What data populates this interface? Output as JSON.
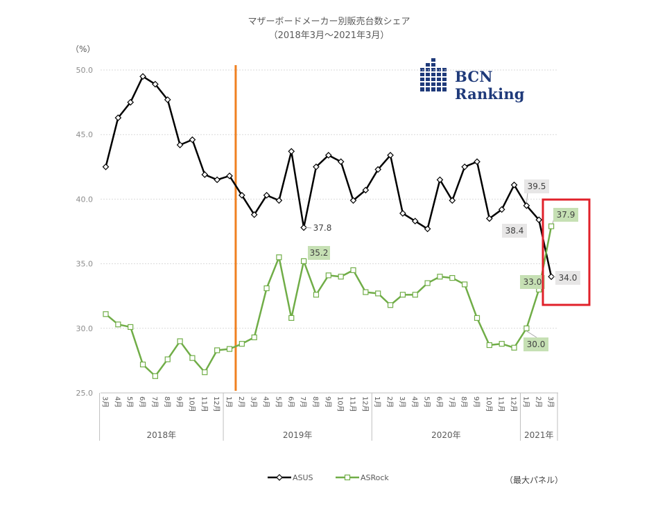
{
  "chart_data": {
    "type": "line",
    "title": "マザーボードメーカー別販売台数シェア",
    "subtitle": "（2018年3月～2021年3月）",
    "ylabel": "（%）",
    "ylim": [
      25,
      50
    ],
    "yticks": [
      "50.0",
      "45.0",
      "40.0",
      "35.0",
      "30.0",
      "25.0"
    ],
    "grid": true,
    "legend_position": "bottom",
    "categories": [
      "3月",
      "4月",
      "5月",
      "6月",
      "7月",
      "8月",
      "9月",
      "10月",
      "11月",
      "12月",
      "1月",
      "2月",
      "3月",
      "4月",
      "5月",
      "6月",
      "7月",
      "8月",
      "9月",
      "10月",
      "11月",
      "12月",
      "1月",
      "2月",
      "3月",
      "4月",
      "5月",
      "6月",
      "7月",
      "8月",
      "9月",
      "10月",
      "11月",
      "12月",
      "1月",
      "2月",
      "3月"
    ],
    "years": [
      {
        "label": "2018年",
        "from": 0,
        "to": 9
      },
      {
        "label": "2019年",
        "from": 10,
        "to": 21
      },
      {
        "label": "2020年",
        "from": 22,
        "to": 33
      },
      {
        "label": "2021年",
        "from": 34,
        "to": 36
      }
    ],
    "series": [
      {
        "name": "ASUS",
        "color": "#000000",
        "marker": "diamond",
        "values": [
          42.5,
          46.3,
          47.5,
          49.5,
          48.9,
          47.7,
          44.2,
          44.6,
          41.9,
          41.5,
          41.8,
          40.3,
          38.8,
          40.3,
          39.9,
          43.7,
          37.8,
          42.5,
          43.4,
          42.9,
          39.9,
          40.7,
          42.3,
          43.4,
          38.9,
          38.3,
          37.7,
          41.5,
          39.9,
          42.5,
          42.9,
          38.5,
          39.2,
          41.1,
          39.5,
          38.4,
          34.0
        ]
      },
      {
        "name": "ASRock",
        "color": "#70ad47",
        "marker": "square",
        "values": [
          31.1,
          30.3,
          30.1,
          27.2,
          26.3,
          27.6,
          29.0,
          27.7,
          26.6,
          28.3,
          28.4,
          28.8,
          29.3,
          33.1,
          35.5,
          30.8,
          35.2,
          32.6,
          34.1,
          34.0,
          34.5,
          32.8,
          32.7,
          31.8,
          32.6,
          32.6,
          33.5,
          34.0,
          33.9,
          33.4,
          30.8,
          28.7,
          28.8,
          28.5,
          30.0,
          33.0,
          37.9
        ]
      }
    ],
    "data_labels": [
      {
        "series": 0,
        "index": 16,
        "text": "37.8"
      },
      {
        "series": 0,
        "index": 34,
        "text": "39.5"
      },
      {
        "series": 0,
        "index": 35,
        "text": "38.4"
      },
      {
        "series": 0,
        "index": 36,
        "text": "34.0"
      },
      {
        "series": 1,
        "index": 16,
        "text": "35.2"
      },
      {
        "series": 1,
        "index": 34,
        "text": "30.0"
      },
      {
        "series": 1,
        "index": 35,
        "text": "33.0"
      },
      {
        "series": 1,
        "index": 36,
        "text": "37.9"
      }
    ],
    "annotations": {
      "vertical_marker_color": "#f08020",
      "highlight_box_color": "#e0202a"
    }
  },
  "logo": {
    "text": "BCN Ranking",
    "color": "#1f3a7a"
  },
  "footnote": "（最大パネル）"
}
